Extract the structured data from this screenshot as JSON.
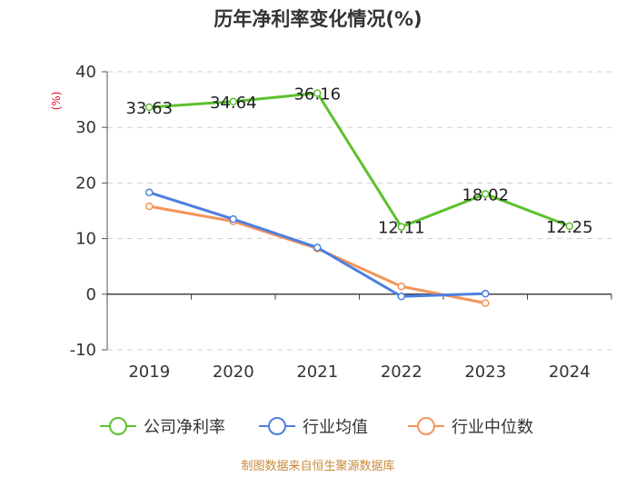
{
  "chart_data": {
    "type": "line",
    "title": "历年净利率变化情况(%)",
    "ylabel": "(%)",
    "categories": [
      "2019",
      "2020",
      "2021",
      "2022",
      "2023",
      "2024"
    ],
    "ylim": [
      -10,
      40
    ],
    "yticks": [
      40,
      30,
      20,
      10,
      0,
      -10
    ],
    "grid": true,
    "legend_position": "bottom",
    "series": [
      {
        "name": "公司净利率",
        "color": "#5cc12f",
        "values": [
          33.63,
          34.64,
          36.16,
          12.11,
          18.02,
          12.25
        ],
        "labels": [
          "33.63",
          "34.64",
          "36.16",
          "12.11",
          "18.02",
          "12.25"
        ]
      },
      {
        "name": "行业均值",
        "color": "#4d7fe0",
        "values": [
          18.3,
          13.5,
          8.4,
          -0.4,
          0.1,
          null
        ]
      },
      {
        "name": "行业中位数",
        "color": "#f4945a",
        "values": [
          15.8,
          13.1,
          8.2,
          1.4,
          -1.6,
          null
        ]
      }
    ]
  },
  "source": "制图数据来自恒生聚源数据库"
}
